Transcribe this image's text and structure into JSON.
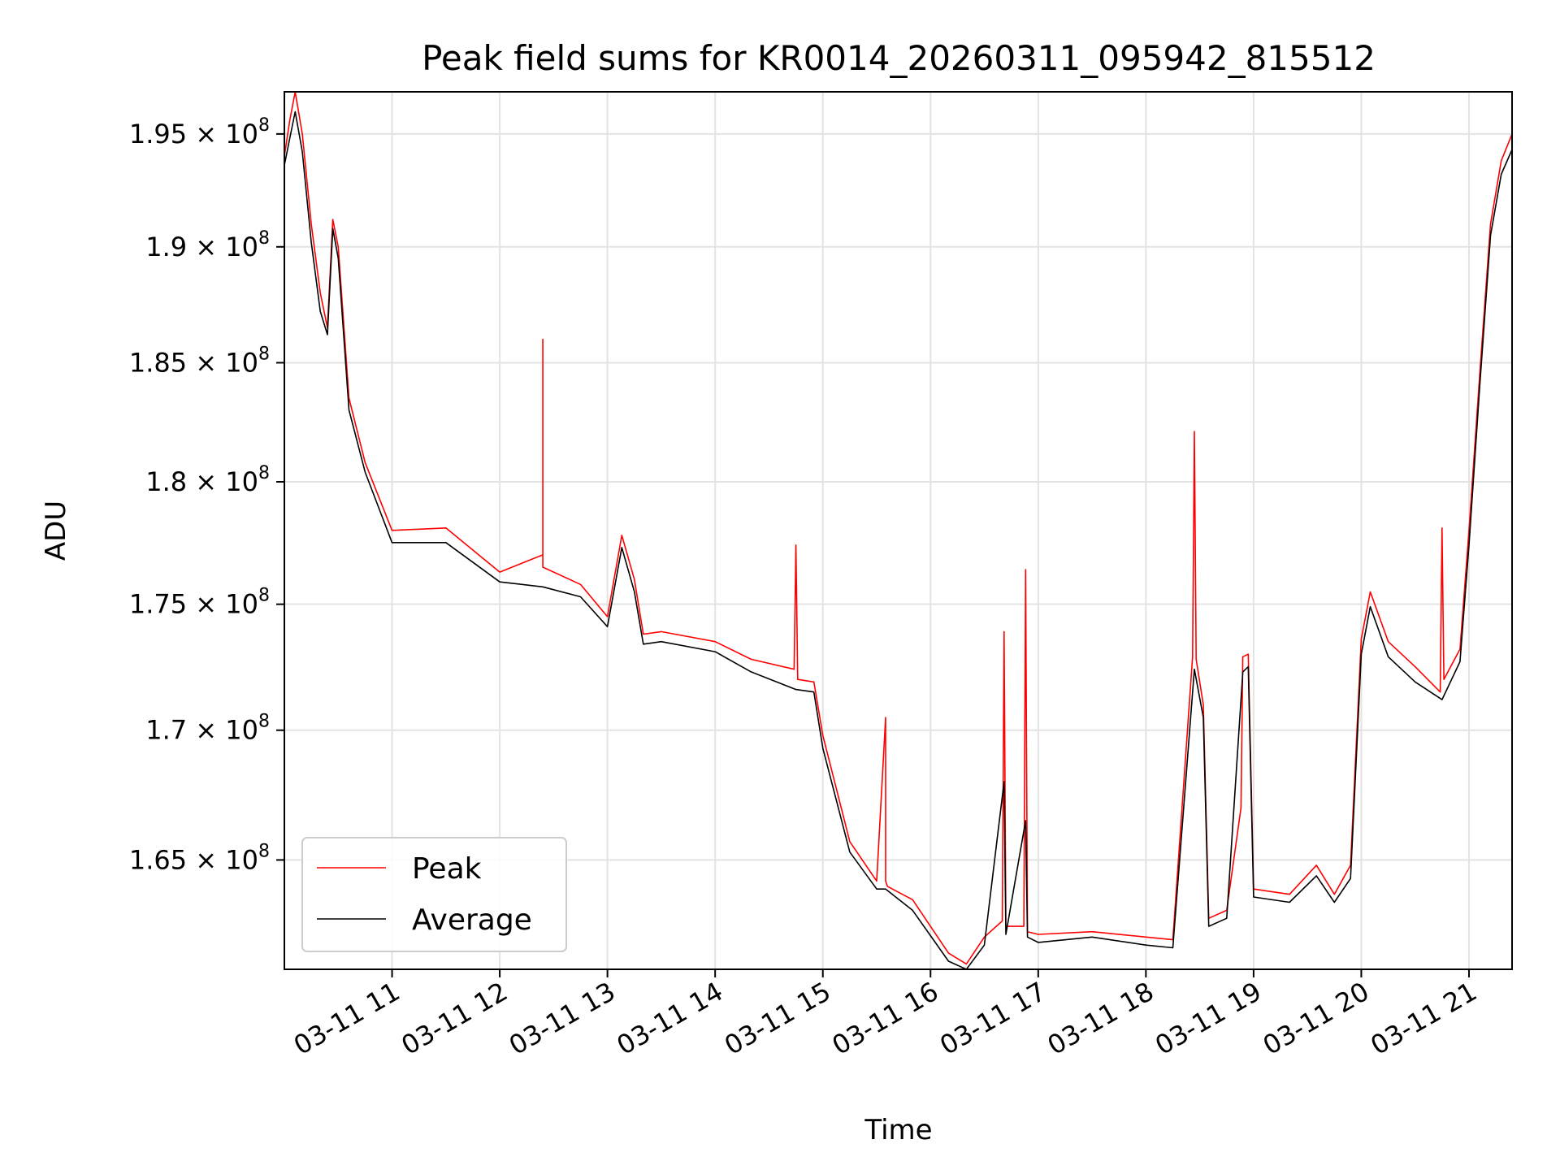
{
  "chart_data": {
    "type": "line",
    "title": "Peak field sums for KR0014_20260311_095942_815512",
    "xlabel": "Time",
    "ylabel": "ADU",
    "xlim": [
      "03-11 10:00",
      "03-11 21:24"
    ],
    "ylim": [
      160900000,
      196900000
    ],
    "y_scale": "log",
    "grid": true,
    "legend_position": "lower-left",
    "x_ticks": [
      {
        "label": "03-11 11",
        "value": "03-11 11:00"
      },
      {
        "label": "03-11 12",
        "value": "03-11 12:00"
      },
      {
        "label": "03-11 13",
        "value": "03-11 13:00"
      },
      {
        "label": "03-11 14",
        "value": "03-11 14:00"
      },
      {
        "label": "03-11 15",
        "value": "03-11 15:00"
      },
      {
        "label": "03-11 16",
        "value": "03-11 16:00"
      },
      {
        "label": "03-11 17",
        "value": "03-11 17:00"
      },
      {
        "label": "03-11 18",
        "value": "03-11 18:00"
      },
      {
        "label": "03-11 19",
        "value": "03-11 19:00"
      },
      {
        "label": "03-11 20",
        "value": "03-11 20:00"
      },
      {
        "label": "03-11 21",
        "value": "03-11 21:00"
      }
    ],
    "y_ticks": [
      {
        "mantissa": "1.65",
        "value": 165000000
      },
      {
        "mantissa": "1.7",
        "value": 170000000
      },
      {
        "mantissa": "1.75",
        "value": 175000000
      },
      {
        "mantissa": "1.8",
        "value": 180000000
      },
      {
        "mantissa": "1.85",
        "value": 185000000
      },
      {
        "mantissa": "1.9",
        "value": 190000000
      },
      {
        "mantissa": "1.95",
        "value": 195000000
      }
    ],
    "y_tick_multiplier": "× 10",
    "y_tick_exponent": "8",
    "series": [
      {
        "name": "Peak",
        "color": "#ff0000",
        "x": [
          "03-11 10:00",
          "03-11 10:03",
          "03-11 10:06",
          "03-11 10:10",
          "03-11 10:15",
          "03-11 10:20",
          "03-11 10:24",
          "03-11 10:27",
          "03-11 10:30",
          "03-11 10:36",
          "03-11 10:45",
          "03-11 11:00",
          "03-11 11:30",
          "03-11 12:00",
          "03-11 12:24",
          "03-11 12:24",
          "03-11 12:24",
          "03-11 12:45",
          "03-11 13:00",
          "03-11 13:08",
          "03-11 13:15",
          "03-11 13:20",
          "03-11 13:30",
          "03-11 14:00",
          "03-11 14:20",
          "03-11 14:44",
          "03-11 14:45",
          "03-11 14:46",
          "03-11 14:55",
          "03-11 15:00",
          "03-11 15:15",
          "03-11 15:30",
          "03-11 15:35",
          "03-11 15:35",
          "03-11 15:36",
          "03-11 15:50",
          "03-11 16:10",
          "03-11 16:20",
          "03-11 16:30",
          "03-11 16:40",
          "03-11 16:41",
          "03-11 16:42",
          "03-11 16:52",
          "03-11 16:53",
          "03-11 16:54",
          "03-11 17:00",
          "03-11 17:30",
          "03-11 18:00",
          "03-11 18:15",
          "03-11 18:26",
          "03-11 18:27",
          "03-11 18:28",
          "03-11 18:32",
          "03-11 18:35",
          "03-11 18:45",
          "03-11 18:53",
          "03-11 18:54",
          "03-11 18:57",
          "03-11 19:00",
          "03-11 19:20",
          "03-11 19:35",
          "03-11 19:45",
          "03-11 19:54",
          "03-11 20:00",
          "03-11 20:05",
          "03-11 20:15",
          "03-11 20:30",
          "03-11 20:44",
          "03-11 20:45",
          "03-11 20:46",
          "03-11 20:55",
          "03-11 21:00",
          "03-11 21:06",
          "03-11 21:12",
          "03-11 21:18",
          "03-11 21:24"
        ],
        "values": [
          194000000,
          195600000,
          196900000,
          195000000,
          191000000,
          188000000,
          186500000,
          191200000,
          190000000,
          183500000,
          180800000,
          178000000,
          178100000,
          176300000,
          177000000,
          186000000,
          176500000,
          175800000,
          174500000,
          177800000,
          176000000,
          173800000,
          173900000,
          173500000,
          172800000,
          172400000,
          177400000,
          172000000,
          171900000,
          169800000,
          165700000,
          164200000,
          170500000,
          164200000,
          164000000,
          163500000,
          161500000,
          161100000,
          162100000,
          162700000,
          173900000,
          162500000,
          162500000,
          176400000,
          162300000,
          162200000,
          162300000,
          162100000,
          162000000,
          172900000,
          182100000,
          172800000,
          171000000,
          162800000,
          163100000,
          167000000,
          172900000,
          173000000,
          163900000,
          163700000,
          164800000,
          163700000,
          164800000,
          173600000,
          175500000,
          173500000,
          172500000,
          171500000,
          178100000,
          172000000,
          173200000,
          178000000,
          184500000,
          191000000,
          193800000,
          195000000
        ]
      },
      {
        "name": "Average",
        "color": "#000000",
        "x": [
          "03-11 10:00",
          "03-11 10:03",
          "03-11 10:06",
          "03-11 10:10",
          "03-11 10:15",
          "03-11 10:20",
          "03-11 10:24",
          "03-11 10:27",
          "03-11 10:30",
          "03-11 10:36",
          "03-11 10:45",
          "03-11 11:00",
          "03-11 11:30",
          "03-11 12:00",
          "03-11 12:24",
          "03-11 12:45",
          "03-11 13:00",
          "03-11 13:08",
          "03-11 13:15",
          "03-11 13:20",
          "03-11 13:30",
          "03-11 14:00",
          "03-11 14:20",
          "03-11 14:45",
          "03-11 14:55",
          "03-11 15:00",
          "03-11 15:15",
          "03-11 15:30",
          "03-11 15:35",
          "03-11 15:50",
          "03-11 16:10",
          "03-11 16:20",
          "03-11 16:30",
          "03-11 16:41",
          "03-11 16:42",
          "03-11 16:53",
          "03-11 16:54",
          "03-11 17:00",
          "03-11 17:30",
          "03-11 18:00",
          "03-11 18:15",
          "03-11 18:27",
          "03-11 18:32",
          "03-11 18:35",
          "03-11 18:45",
          "03-11 18:54",
          "03-11 18:57",
          "03-11 19:00",
          "03-11 19:20",
          "03-11 19:35",
          "03-11 19:45",
          "03-11 19:54",
          "03-11 20:00",
          "03-11 20:05",
          "03-11 20:15",
          "03-11 20:30",
          "03-11 20:45",
          "03-11 20:55",
          "03-11 21:00",
          "03-11 21:06",
          "03-11 21:12",
          "03-11 21:18",
          "03-11 21:24"
        ],
        "values": [
          193600000,
          194800000,
          196000000,
          194200000,
          190200000,
          187200000,
          186200000,
          190800000,
          189500000,
          183000000,
          180400000,
          177500000,
          177500000,
          175900000,
          175700000,
          175300000,
          174100000,
          177300000,
          175500000,
          173400000,
          173500000,
          173100000,
          172300000,
          171600000,
          171500000,
          169300000,
          165300000,
          163900000,
          163900000,
          163100000,
          161200000,
          160900000,
          161800000,
          168000000,
          162200000,
          166500000,
          162100000,
          161900000,
          162100000,
          161800000,
          161700000,
          172400000,
          170500000,
          162500000,
          162800000,
          172300000,
          172500000,
          163600000,
          163400000,
          164400000,
          163400000,
          164300000,
          173000000,
          174900000,
          172900000,
          171900000,
          171200000,
          172700000,
          177400000,
          184000000,
          190500000,
          193200000,
          194300000
        ]
      }
    ]
  }
}
